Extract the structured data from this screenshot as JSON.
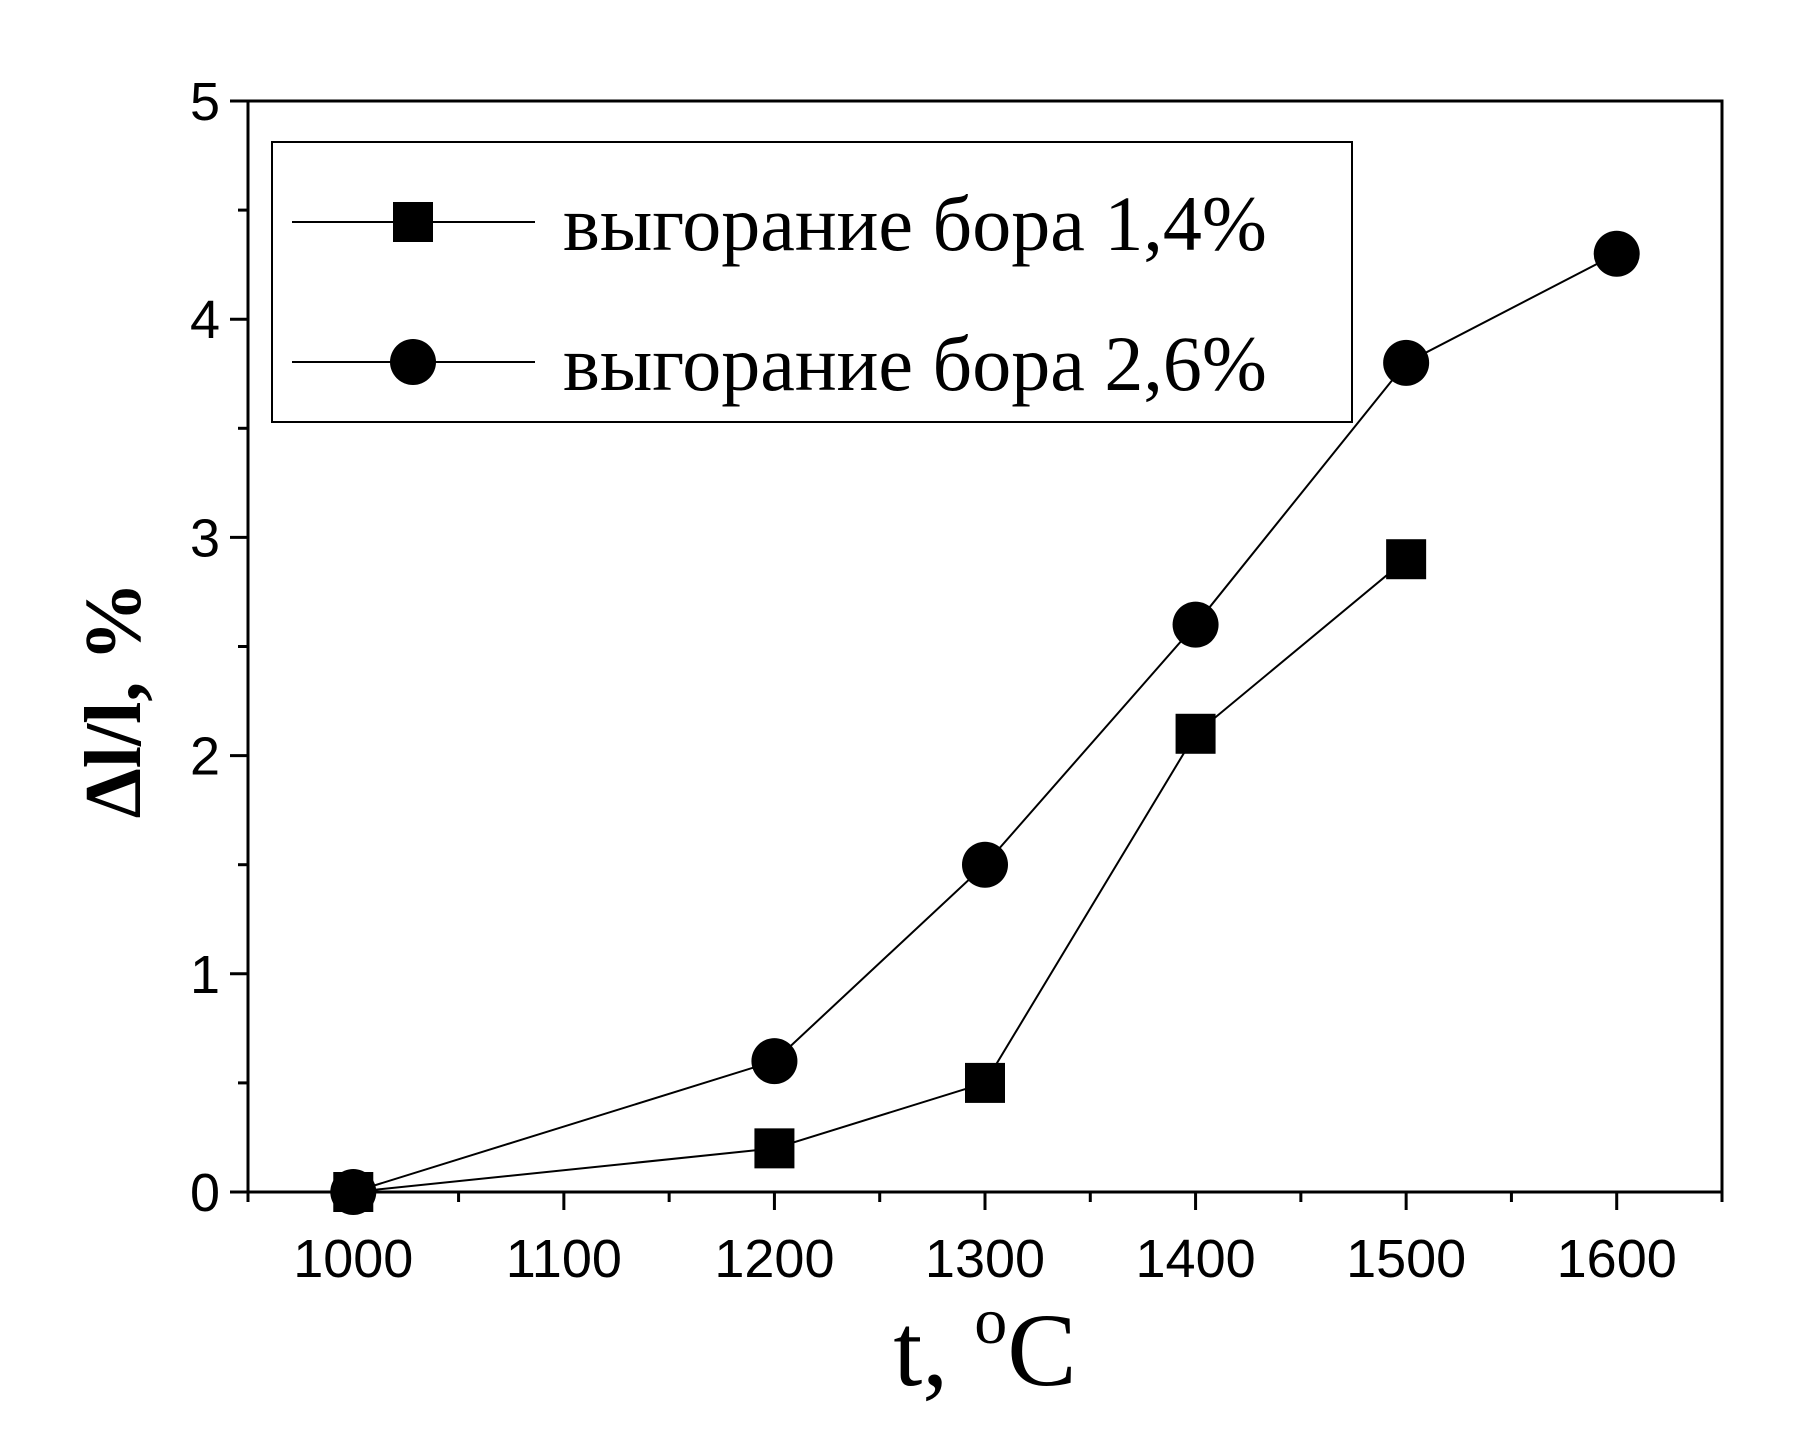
{
  "chart_data": {
    "type": "line",
    "title": "",
    "xlabel": "t, °C",
    "xlabel_main": "t, ",
    "xlabel_sup": "o",
    "xlabel_unit": "C",
    "ylabel": "Δl/l, %",
    "xlim": [
      950,
      1650
    ],
    "ylim": [
      0,
      5
    ],
    "xticks": [
      1000,
      1100,
      1200,
      1300,
      1400,
      1500,
      1600
    ],
    "yticks": [
      0,
      1,
      2,
      3,
      4,
      5
    ],
    "grid": false,
    "legend_position": "top-left",
    "series": [
      {
        "name": "выгорание бора 1,4%",
        "marker": "square",
        "color": "#000000",
        "x": [
          1000,
          1200,
          1300,
          1400,
          1500
        ],
        "y": [
          0,
          0.2,
          0.5,
          2.1,
          2.9
        ]
      },
      {
        "name": "выгорание бора 2,6%",
        "marker": "circle",
        "color": "#000000",
        "x": [
          1000,
          1200,
          1300,
          1400,
          1500,
          1600
        ],
        "y": [
          0,
          0.6,
          1.5,
          2.6,
          3.8,
          4.3
        ]
      }
    ]
  }
}
